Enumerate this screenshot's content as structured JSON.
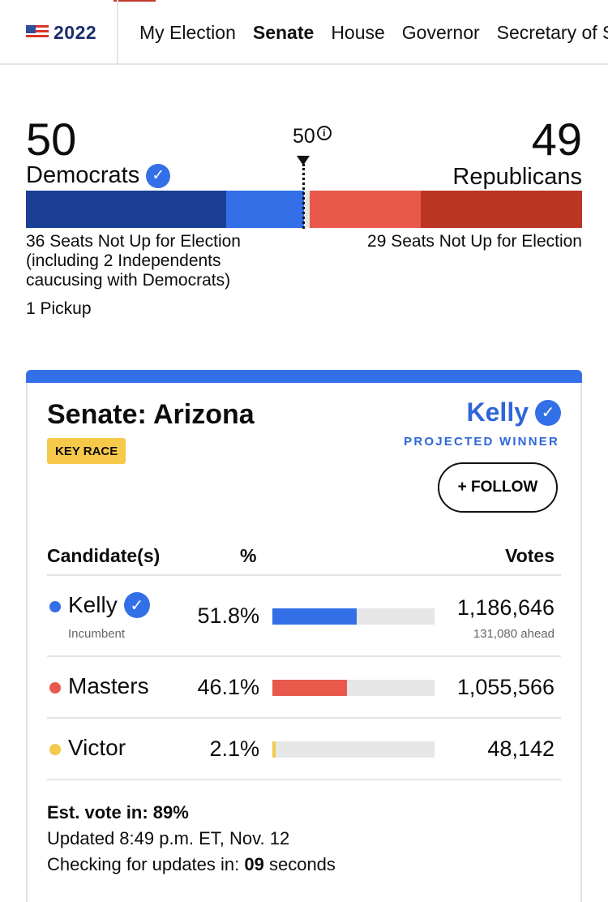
{
  "nav": {
    "year": "2022",
    "tabs": [
      {
        "label": "My Election",
        "active": false
      },
      {
        "label": "Senate",
        "active": true
      },
      {
        "label": "House",
        "active": false
      },
      {
        "label": "Governor",
        "active": false
      },
      {
        "label": "Secretary of State",
        "active": false
      }
    ]
  },
  "balance": {
    "dem_count": "50",
    "dem_label": "Democrats",
    "rep_count": "49",
    "rep_label": "Republicans",
    "majority": "50",
    "dem_note": "36 Seats Not Up for Election (including 2 Independents caucusing with Democrats)",
    "rep_note": "29 Seats Not Up for Election",
    "pickup": "1 Pickup",
    "seats": {
      "dem_not_up": 36,
      "dem_won": 14,
      "rep_won": 20,
      "rep_not_up": 29,
      "total": 100
    },
    "colors": {
      "dem_dark": "#1b3f95",
      "dem_light": "#3370e8",
      "rep_light": "#e8594b",
      "rep_dark": "#bb3525"
    }
  },
  "race": {
    "title": "Senate: Arizona",
    "badge": "KEY RACE",
    "winner": "Kelly",
    "winner_label": "PROJECTED WINNER",
    "follow_label": "+ FOLLOW",
    "headers": {
      "candidate": "Candidate(s)",
      "pct": "%",
      "votes": "Votes"
    },
    "candidates": [
      {
        "name": "Kelly",
        "winner": true,
        "sub": "Incumbent",
        "pct": "51.8%",
        "pct_value": 51.8,
        "votes": "1,186,646",
        "ahead": "131,080 ahead",
        "color": "#3370e8"
      },
      {
        "name": "Masters",
        "winner": false,
        "sub": "",
        "pct": "46.1%",
        "pct_value": 46.1,
        "votes": "1,055,566",
        "ahead": "",
        "color": "#e8594b"
      },
      {
        "name": "Victor",
        "winner": false,
        "sub": "",
        "pct": "2.1%",
        "pct_value": 2.1,
        "votes": "48,142",
        "ahead": "",
        "color": "#f2c94c"
      }
    ],
    "footer": {
      "est_vote": "Est. vote in: 89%",
      "updated": "Updated 8:49 p.m. ET, Nov. 12",
      "checking_prefix": "Checking for updates in: ",
      "checking_count": "09",
      "checking_suffix": " seconds"
    }
  }
}
